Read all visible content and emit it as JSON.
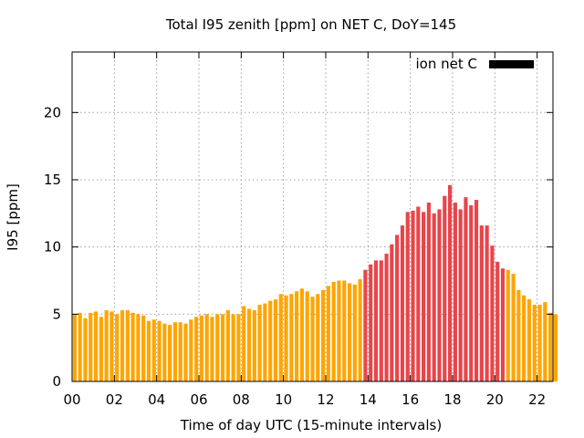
{
  "chart_data": {
    "type": "bar",
    "title": "Total I95 zenith [ppm] on NET C, DoY=145",
    "xlabel": "Time of day UTC (15-minute intervals)",
    "ylabel": "I95 [ppm]",
    "xlim": [
      0,
      22.75
    ],
    "ylim": [
      0,
      24.5
    ],
    "xticks": [
      "00",
      "02",
      "04",
      "06",
      "08",
      "10",
      "12",
      "14",
      "16",
      "18",
      "20",
      "22"
    ],
    "xtick_values": [
      0,
      2,
      4,
      6,
      8,
      10,
      12,
      14,
      16,
      18,
      20,
      22
    ],
    "yticks": [
      0,
      5,
      10,
      15,
      20
    ],
    "grid": true,
    "legend": {
      "label": "ion net C",
      "position": "top-right",
      "color": "#000000"
    },
    "colors": {
      "low": "#FFA500",
      "high": "#E8454A"
    },
    "interval_hours": 0.25,
    "start_hour": 0,
    "values": [
      5.0,
      5.1,
      4.7,
      5.1,
      5.2,
      4.8,
      5.3,
      5.2,
      5.0,
      5.3,
      5.3,
      5.1,
      5.0,
      4.9,
      4.5,
      4.6,
      4.5,
      4.3,
      4.2,
      4.4,
      4.4,
      4.3,
      4.6,
      4.8,
      4.9,
      5.0,
      4.8,
      5.0,
      5.0,
      5.3,
      5.0,
      5.0,
      5.6,
      5.4,
      5.3,
      5.7,
      5.8,
      6.0,
      6.1,
      6.5,
      6.4,
      6.5,
      6.7,
      6.9,
      6.7,
      6.3,
      6.5,
      6.8,
      7.1,
      7.4,
      7.5,
      7.5,
      7.3,
      7.2,
      7.6,
      8.3,
      8.7,
      9.0,
      9.0,
      9.5,
      10.2,
      10.9,
      11.6,
      12.6,
      12.7,
      13.0,
      12.6,
      13.3,
      12.5,
      12.8,
      13.8,
      14.6,
      13.3,
      12.8,
      13.7,
      13.1,
      13.5,
      11.6,
      11.6,
      10.1,
      8.9,
      8.4,
      8.3,
      8.0,
      6.8,
      6.4,
      6.1,
      5.7,
      5.7,
      5.9,
      5.1,
      5.0
    ],
    "series_colors": [
      "low",
      "low",
      "low",
      "low",
      "low",
      "low",
      "low",
      "low",
      "low",
      "low",
      "low",
      "low",
      "low",
      "low",
      "low",
      "low",
      "low",
      "low",
      "low",
      "low",
      "low",
      "low",
      "low",
      "low",
      "low",
      "low",
      "low",
      "low",
      "low",
      "low",
      "low",
      "low",
      "low",
      "low",
      "low",
      "low",
      "low",
      "low",
      "low",
      "low",
      "low",
      "low",
      "low",
      "low",
      "low",
      "low",
      "low",
      "low",
      "low",
      "low",
      "low",
      "low",
      "low",
      "low",
      "low",
      "high",
      "high",
      "high",
      "high",
      "high",
      "high",
      "high",
      "high",
      "high",
      "high",
      "high",
      "high",
      "high",
      "high",
      "high",
      "high",
      "high",
      "high",
      "high",
      "high",
      "high",
      "high",
      "high",
      "high",
      "high",
      "high",
      "high",
      "low",
      "low",
      "low",
      "low",
      "low",
      "low",
      "low",
      "low",
      "low",
      "low"
    ]
  }
}
